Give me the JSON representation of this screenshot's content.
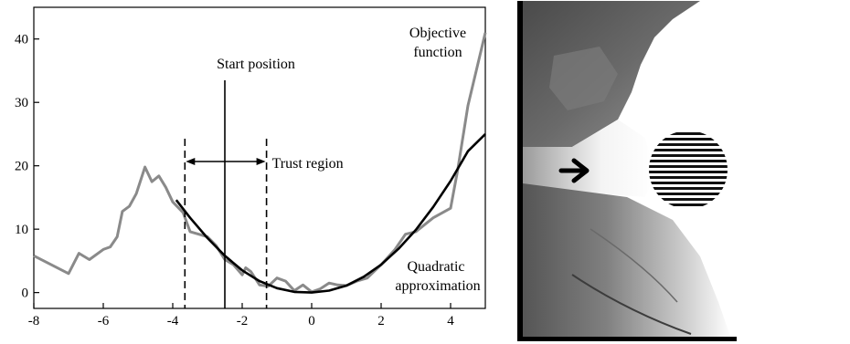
{
  "chart_data": {
    "type": "line",
    "title": "",
    "xlabel": "",
    "ylabel": "",
    "xlim": [
      -8,
      5
    ],
    "ylim": [
      -2.5,
      45
    ],
    "grid": false,
    "x_ticks": [
      -8,
      -6,
      -4,
      -2,
      0,
      2,
      4
    ],
    "y_ticks": [
      0,
      10,
      20,
      30,
      40
    ],
    "x_tick_labels": [
      "-8",
      "-6",
      "-4",
      "-2",
      "0",
      "2",
      "4"
    ],
    "y_tick_labels": [
      "0",
      "10",
      "20",
      "30",
      "40"
    ],
    "series": [
      {
        "name": "Objective function",
        "color": "#8a8a8a",
        "points": [
          [
            -8,
            5.8
          ],
          [
            -7,
            3.0
          ],
          [
            -6.7,
            6.2
          ],
          [
            -6.4,
            5.2
          ],
          [
            -6.0,
            6.8
          ],
          [
            -5.8,
            7.2
          ],
          [
            -5.6,
            8.8
          ],
          [
            -5.45,
            12.8
          ],
          [
            -5.25,
            13.6
          ],
          [
            -5.05,
            15.6
          ],
          [
            -4.8,
            19.8
          ],
          [
            -4.6,
            17.5
          ],
          [
            -4.4,
            18.4
          ],
          [
            -4.2,
            16.6
          ],
          [
            -4.0,
            14.3
          ],
          [
            -3.7,
            12.6
          ],
          [
            -3.5,
            9.6
          ],
          [
            -3.25,
            9.2
          ],
          [
            -3.0,
            8.8
          ],
          [
            -2.75,
            7.4
          ],
          [
            -2.5,
            5.2
          ],
          [
            -2.25,
            4.4
          ],
          [
            -2.0,
            2.8
          ],
          [
            -1.9,
            3.9
          ],
          [
            -1.75,
            3.3
          ],
          [
            -1.5,
            1.2
          ],
          [
            -1.25,
            1.0
          ],
          [
            -1.0,
            2.3
          ],
          [
            -0.75,
            1.8
          ],
          [
            -0.5,
            0.3
          ],
          [
            -0.25,
            1.2
          ],
          [
            0,
            0.1
          ],
          [
            0.25,
            0.6
          ],
          [
            0.5,
            1.5
          ],
          [
            0.75,
            1.2
          ],
          [
            1.0,
            1.1
          ],
          [
            1.3,
            1.8
          ],
          [
            1.6,
            2.3
          ],
          [
            2.0,
            4.4
          ],
          [
            2.4,
            6.8
          ],
          [
            2.7,
            9.2
          ],
          [
            3.0,
            9.6
          ],
          [
            3.5,
            11.8
          ],
          [
            4.0,
            13.3
          ],
          [
            4.2,
            19.2
          ],
          [
            4.5,
            29.5
          ],
          [
            5.0,
            41.0
          ]
        ]
      },
      {
        "name": "Quadratic approximation",
        "color": "#000000",
        "points": [
          [
            -3.9,
            14.6
          ],
          [
            -3.5,
            11.8
          ],
          [
            -3.0,
            8.6
          ],
          [
            -2.5,
            5.8
          ],
          [
            -2.0,
            3.5
          ],
          [
            -1.5,
            1.8
          ],
          [
            -1.0,
            0.7
          ],
          [
            -0.5,
            0.1
          ],
          [
            0,
            0.0
          ],
          [
            0.5,
            0.3
          ],
          [
            1.0,
            1.1
          ],
          [
            1.5,
            2.5
          ],
          [
            2.0,
            4.4
          ],
          [
            2.5,
            6.9
          ],
          [
            3.0,
            9.9
          ],
          [
            3.5,
            13.5
          ],
          [
            4.0,
            17.6
          ],
          [
            4.5,
            22.3
          ],
          [
            5.0,
            25.0
          ]
        ]
      }
    ],
    "annotations": {
      "start_position": {
        "label": "Start position",
        "x": -2.5
      },
      "trust_region": {
        "label": "Trust region",
        "x_range": [
          -3.65,
          -1.3
        ]
      },
      "objective_label": [
        "Objective",
        "function"
      ],
      "quadratic_label": [
        "Quadratic",
        "approximation"
      ]
    }
  },
  "image_panel": {
    "description_icon": "arrow-right-icon",
    "marker": "striped-disk",
    "colors": {
      "background": "#ffffff",
      "frame": "#000000"
    }
  }
}
